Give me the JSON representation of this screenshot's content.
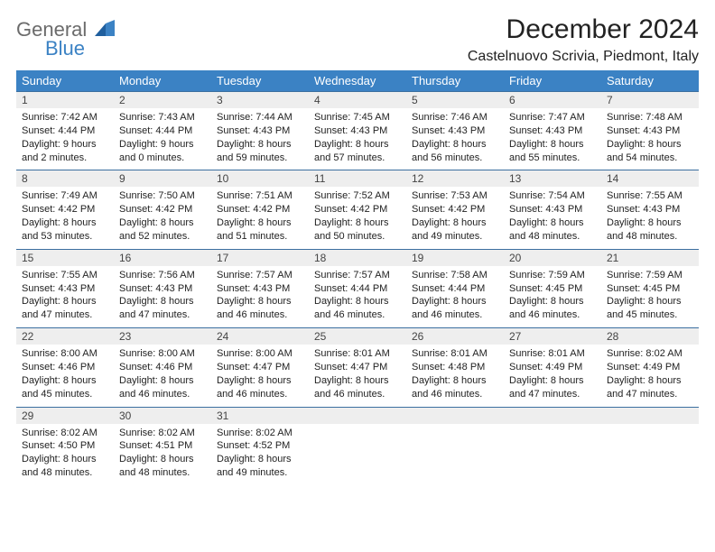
{
  "logo": {
    "text1": "General",
    "text2": "Blue"
  },
  "title": "December 2024",
  "location": "Castelnuovo Scrivia, Piedmont, Italy",
  "colors": {
    "header_bg": "#3b82c4",
    "header_text": "#ffffff",
    "daynum_bg": "#eeeeee",
    "row_border": "#3b6fa0",
    "body_text": "#222222",
    "logo_gray": "#6b6b6b",
    "logo_blue": "#3b82c4"
  },
  "weekdays": [
    "Sunday",
    "Monday",
    "Tuesday",
    "Wednesday",
    "Thursday",
    "Friday",
    "Saturday"
  ],
  "weeks": [
    [
      {
        "n": "1",
        "sunrise": "Sunrise: 7:42 AM",
        "sunset": "Sunset: 4:44 PM",
        "daylight": "Daylight: 9 hours and 2 minutes."
      },
      {
        "n": "2",
        "sunrise": "Sunrise: 7:43 AM",
        "sunset": "Sunset: 4:44 PM",
        "daylight": "Daylight: 9 hours and 0 minutes."
      },
      {
        "n": "3",
        "sunrise": "Sunrise: 7:44 AM",
        "sunset": "Sunset: 4:43 PM",
        "daylight": "Daylight: 8 hours and 59 minutes."
      },
      {
        "n": "4",
        "sunrise": "Sunrise: 7:45 AM",
        "sunset": "Sunset: 4:43 PM",
        "daylight": "Daylight: 8 hours and 57 minutes."
      },
      {
        "n": "5",
        "sunrise": "Sunrise: 7:46 AM",
        "sunset": "Sunset: 4:43 PM",
        "daylight": "Daylight: 8 hours and 56 minutes."
      },
      {
        "n": "6",
        "sunrise": "Sunrise: 7:47 AM",
        "sunset": "Sunset: 4:43 PM",
        "daylight": "Daylight: 8 hours and 55 minutes."
      },
      {
        "n": "7",
        "sunrise": "Sunrise: 7:48 AM",
        "sunset": "Sunset: 4:43 PM",
        "daylight": "Daylight: 8 hours and 54 minutes."
      }
    ],
    [
      {
        "n": "8",
        "sunrise": "Sunrise: 7:49 AM",
        "sunset": "Sunset: 4:42 PM",
        "daylight": "Daylight: 8 hours and 53 minutes."
      },
      {
        "n": "9",
        "sunrise": "Sunrise: 7:50 AM",
        "sunset": "Sunset: 4:42 PM",
        "daylight": "Daylight: 8 hours and 52 minutes."
      },
      {
        "n": "10",
        "sunrise": "Sunrise: 7:51 AM",
        "sunset": "Sunset: 4:42 PM",
        "daylight": "Daylight: 8 hours and 51 minutes."
      },
      {
        "n": "11",
        "sunrise": "Sunrise: 7:52 AM",
        "sunset": "Sunset: 4:42 PM",
        "daylight": "Daylight: 8 hours and 50 minutes."
      },
      {
        "n": "12",
        "sunrise": "Sunrise: 7:53 AM",
        "sunset": "Sunset: 4:42 PM",
        "daylight": "Daylight: 8 hours and 49 minutes."
      },
      {
        "n": "13",
        "sunrise": "Sunrise: 7:54 AM",
        "sunset": "Sunset: 4:43 PM",
        "daylight": "Daylight: 8 hours and 48 minutes."
      },
      {
        "n": "14",
        "sunrise": "Sunrise: 7:55 AM",
        "sunset": "Sunset: 4:43 PM",
        "daylight": "Daylight: 8 hours and 48 minutes."
      }
    ],
    [
      {
        "n": "15",
        "sunrise": "Sunrise: 7:55 AM",
        "sunset": "Sunset: 4:43 PM",
        "daylight": "Daylight: 8 hours and 47 minutes."
      },
      {
        "n": "16",
        "sunrise": "Sunrise: 7:56 AM",
        "sunset": "Sunset: 4:43 PM",
        "daylight": "Daylight: 8 hours and 47 minutes."
      },
      {
        "n": "17",
        "sunrise": "Sunrise: 7:57 AM",
        "sunset": "Sunset: 4:43 PM",
        "daylight": "Daylight: 8 hours and 46 minutes."
      },
      {
        "n": "18",
        "sunrise": "Sunrise: 7:57 AM",
        "sunset": "Sunset: 4:44 PM",
        "daylight": "Daylight: 8 hours and 46 minutes."
      },
      {
        "n": "19",
        "sunrise": "Sunrise: 7:58 AM",
        "sunset": "Sunset: 4:44 PM",
        "daylight": "Daylight: 8 hours and 46 minutes."
      },
      {
        "n": "20",
        "sunrise": "Sunrise: 7:59 AM",
        "sunset": "Sunset: 4:45 PM",
        "daylight": "Daylight: 8 hours and 46 minutes."
      },
      {
        "n": "21",
        "sunrise": "Sunrise: 7:59 AM",
        "sunset": "Sunset: 4:45 PM",
        "daylight": "Daylight: 8 hours and 45 minutes."
      }
    ],
    [
      {
        "n": "22",
        "sunrise": "Sunrise: 8:00 AM",
        "sunset": "Sunset: 4:46 PM",
        "daylight": "Daylight: 8 hours and 45 minutes."
      },
      {
        "n": "23",
        "sunrise": "Sunrise: 8:00 AM",
        "sunset": "Sunset: 4:46 PM",
        "daylight": "Daylight: 8 hours and 46 minutes."
      },
      {
        "n": "24",
        "sunrise": "Sunrise: 8:00 AM",
        "sunset": "Sunset: 4:47 PM",
        "daylight": "Daylight: 8 hours and 46 minutes."
      },
      {
        "n": "25",
        "sunrise": "Sunrise: 8:01 AM",
        "sunset": "Sunset: 4:47 PM",
        "daylight": "Daylight: 8 hours and 46 minutes."
      },
      {
        "n": "26",
        "sunrise": "Sunrise: 8:01 AM",
        "sunset": "Sunset: 4:48 PM",
        "daylight": "Daylight: 8 hours and 46 minutes."
      },
      {
        "n": "27",
        "sunrise": "Sunrise: 8:01 AM",
        "sunset": "Sunset: 4:49 PM",
        "daylight": "Daylight: 8 hours and 47 minutes."
      },
      {
        "n": "28",
        "sunrise": "Sunrise: 8:02 AM",
        "sunset": "Sunset: 4:49 PM",
        "daylight": "Daylight: 8 hours and 47 minutes."
      }
    ],
    [
      {
        "n": "29",
        "sunrise": "Sunrise: 8:02 AM",
        "sunset": "Sunset: 4:50 PM",
        "daylight": "Daylight: 8 hours and 48 minutes."
      },
      {
        "n": "30",
        "sunrise": "Sunrise: 8:02 AM",
        "sunset": "Sunset: 4:51 PM",
        "daylight": "Daylight: 8 hours and 48 minutes."
      },
      {
        "n": "31",
        "sunrise": "Sunrise: 8:02 AM",
        "sunset": "Sunset: 4:52 PM",
        "daylight": "Daylight: 8 hours and 49 minutes."
      },
      null,
      null,
      null,
      null
    ]
  ]
}
